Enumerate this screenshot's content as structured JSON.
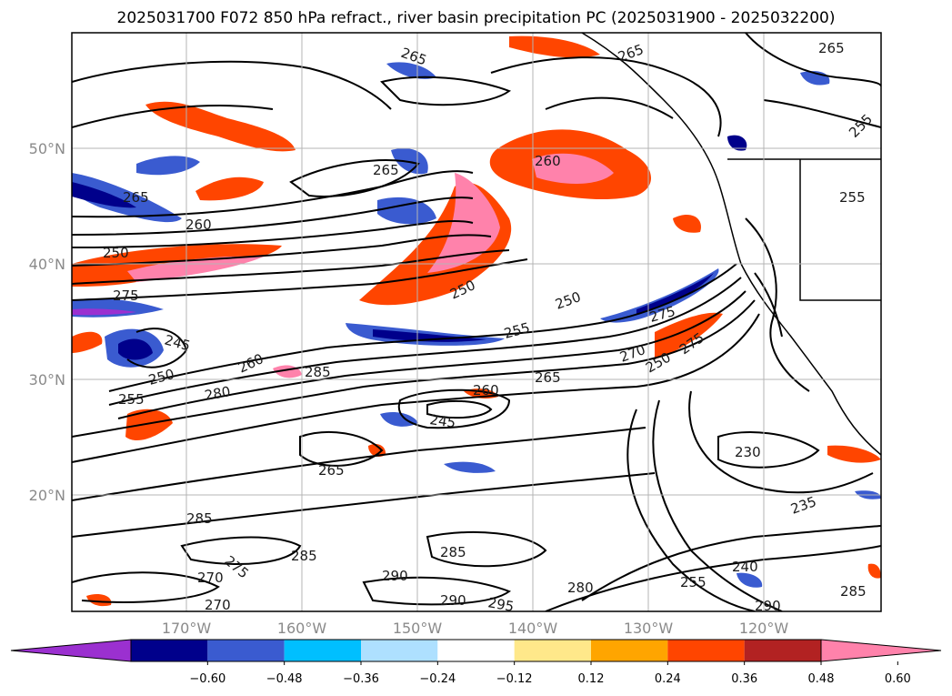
{
  "title": "2025031700 F072 850 hPa refract., river basin precipitation PC (2025031900 - 2025032200)",
  "lat_ticks": [
    "50°N",
    "40°N",
    "30°N",
    "20°N"
  ],
  "lon_ticks": [
    "170°W",
    "160°W",
    "150°W",
    "140°W",
    "130°W",
    "120°W"
  ],
  "contour_labels": [
    "265",
    "265",
    "265",
    "265",
    "260",
    "260",
    "250",
    "275",
    "245",
    "250",
    "255",
    "260",
    "285",
    "280",
    "250",
    "245",
    "255",
    "260",
    "265",
    "250",
    "275",
    "270",
    "250",
    "275",
    "230",
    "235",
    "240",
    "255",
    "280",
    "290",
    "295",
    "290",
    "285",
    "290",
    "285",
    "270",
    "270",
    "275",
    "285",
    "285",
    "265",
    "265",
    "255",
    "255"
  ],
  "colorbar": {
    "ticks": [
      "−0.60",
      "−0.48",
      "−0.36",
      "−0.24",
      "−0.12",
      "0.12",
      "0.24",
      "0.36",
      "0.48",
      "0.60"
    ],
    "colors": [
      "#9b30d0",
      "#00008b",
      "#3a5bd0",
      "#00bfff",
      "#aee0ff",
      "#ffffff",
      "#ffe88a",
      "#ffa500",
      "#ff4500",
      "#b22222",
      "#ff82ab"
    ]
  }
}
